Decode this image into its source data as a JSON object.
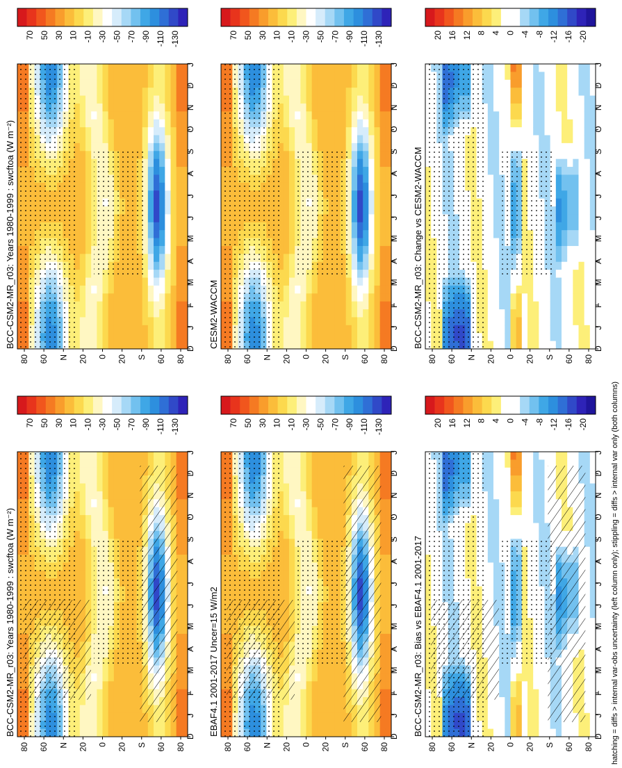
{
  "footer": "hatching = diffs > internal var-obs uncertainty (left column only); stippling = diffs > internal var only (both columns)",
  "colors": {
    "abs_scale": [
      "#d7191c",
      "#e8341c",
      "#f1561d",
      "#f57a22",
      "#f99d2c",
      "#fbbd3a",
      "#fcd94e",
      "#fdef79",
      "#fff7c2",
      "#ffffff",
      "#d6ecfb",
      "#a6d8f6",
      "#72c1ef",
      "#3fa7e6",
      "#2d8fde",
      "#2f6fd6",
      "#3049c8",
      "#2e23b8"
    ],
    "diff_scale": [
      "#d7191c",
      "#e8341c",
      "#f1561d",
      "#f57a22",
      "#f99d2c",
      "#fbbd3a",
      "#fcd94e",
      "#fdef79",
      "#ffffff",
      "#ffffff",
      "#a6d8f6",
      "#72c1ef",
      "#3fa7e6",
      "#2d8fde",
      "#2f6fd6",
      "#3049c8",
      "#2e23b8",
      "#1f159c"
    ]
  },
  "chart_data": [
    {
      "type": "heatmap",
      "panel": "top-left",
      "title": "BCC-CSM2-MR_r03: Years 1980-1999 : swcftoa (W m⁻²)",
      "x_ticks": [
        "D",
        "J",
        "F",
        "M",
        "A",
        "M",
        "J",
        "J",
        "A",
        "S",
        "O",
        "N",
        "D",
        "J"
      ],
      "y_ticks": [
        "80",
        "60",
        "N",
        "20",
        "0",
        "20",
        "S",
        "60",
        "80"
      ],
      "colorbar_ticks": [
        "70",
        "50",
        "30",
        "10",
        "-10",
        "-30",
        "-50",
        "-70",
        "-90",
        "-110",
        "-130"
      ],
      "hatching": true,
      "stippling": true
    },
    {
      "type": "heatmap",
      "panel": "top-right",
      "title": "BCC-CSM2-MR_r03: Years 1980-1999 : swcftoa (W m⁻²)",
      "x_ticks": [
        "D",
        "J",
        "F",
        "M",
        "A",
        "M",
        "J",
        "J",
        "A",
        "S",
        "O",
        "N",
        "D",
        "J"
      ],
      "y_ticks": [
        "80",
        "60",
        "N",
        "20",
        "0",
        "20",
        "S",
        "60",
        "80"
      ],
      "colorbar_ticks": [
        "70",
        "50",
        "30",
        "10",
        "-10",
        "-30",
        "-50",
        "-70",
        "-90",
        "-110",
        "-130"
      ],
      "hatching": false,
      "stippling": true
    },
    {
      "type": "heatmap",
      "panel": "middle-left",
      "title": "EBAF4.1 2001-2017 Uncer=15 W/m2",
      "x_ticks": [
        "D",
        "J",
        "F",
        "M",
        "A",
        "M",
        "J",
        "J",
        "A",
        "S",
        "O",
        "N",
        "D",
        "J"
      ],
      "y_ticks": [
        "80",
        "60",
        "N",
        "20",
        "0",
        "20",
        "S",
        "60",
        "80"
      ],
      "colorbar_ticks": [
        "70",
        "50",
        "30",
        "10",
        "-10",
        "-30",
        "-50",
        "-70",
        "-90",
        "-110",
        "-130"
      ],
      "hatching": true,
      "stippling": true
    },
    {
      "type": "heatmap",
      "panel": "middle-right",
      "title": "CESM2-WACCM",
      "x_ticks": [
        "D",
        "J",
        "F",
        "M",
        "A",
        "M",
        "J",
        "J",
        "A",
        "S",
        "O",
        "N",
        "D",
        "J"
      ],
      "y_ticks": [
        "80",
        "60",
        "N",
        "20",
        "0",
        "20",
        "S",
        "60",
        "80"
      ],
      "colorbar_ticks": [
        "70",
        "50",
        "30",
        "10",
        "-10",
        "-30",
        "-50",
        "-70",
        "-90",
        "-110",
        "-130"
      ],
      "hatching": false,
      "stippling": true
    },
    {
      "type": "heatmap",
      "panel": "bottom-left",
      "title": "BCC-CSM2-MR_r03: Bias vs EBAF4.1 2001-2017",
      "x_ticks": [
        "D",
        "J",
        "F",
        "M",
        "A",
        "M",
        "J",
        "J",
        "A",
        "S",
        "O",
        "N",
        "D",
        "J"
      ],
      "y_ticks": [
        "80",
        "60",
        "N",
        "20",
        "0",
        "20",
        "S",
        "60",
        "80"
      ],
      "colorbar_ticks": [
        "20",
        "16",
        "12",
        "8",
        "4",
        "0",
        "-4",
        "-8",
        "-12",
        "-16",
        "-20"
      ],
      "hatching": true,
      "stippling": true
    },
    {
      "type": "heatmap",
      "panel": "bottom-right",
      "title": "BCC-CSM2-MR_r03: Change vs CESM2-WACCM",
      "x_ticks": [
        "D",
        "J",
        "F",
        "M",
        "A",
        "M",
        "J",
        "J",
        "A",
        "S",
        "O",
        "N",
        "D",
        "J"
      ],
      "y_ticks": [
        "80",
        "60",
        "N",
        "20",
        "0",
        "20",
        "S",
        "60",
        "80"
      ],
      "colorbar_ticks": [
        "20",
        "16",
        "12",
        "8",
        "4",
        "0",
        "-4",
        "-8",
        "-12",
        "-16",
        "-20"
      ],
      "hatching": false,
      "stippling": true
    }
  ]
}
